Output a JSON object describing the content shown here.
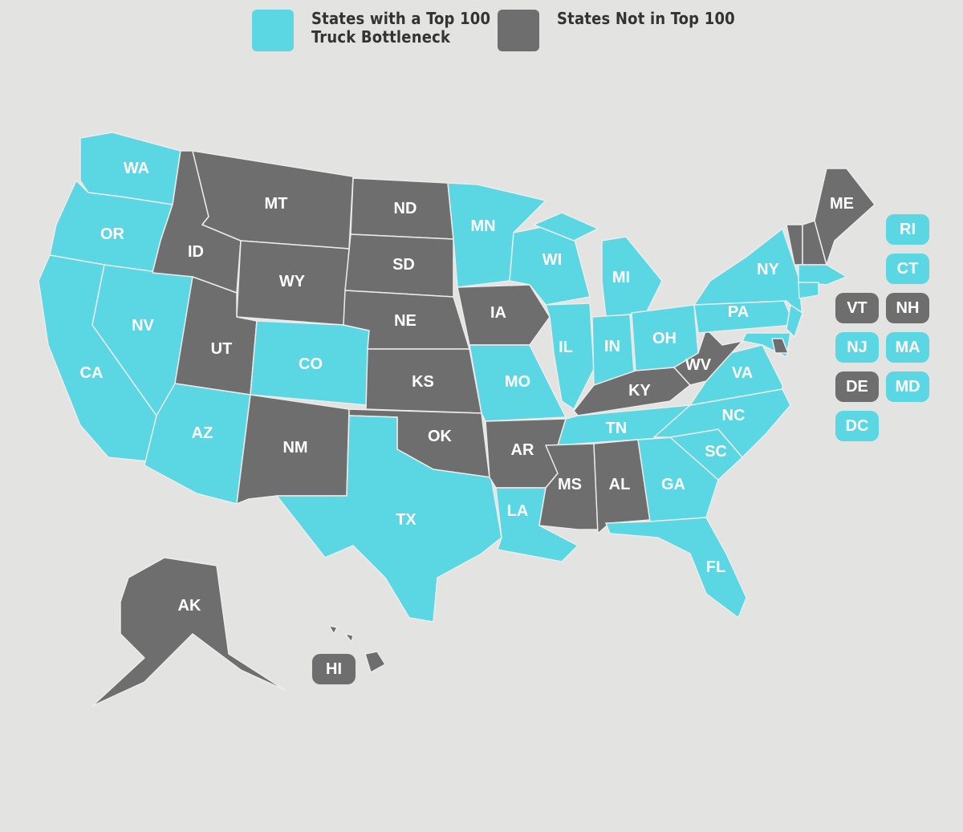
{
  "legend": [
    {
      "label": "States with a Top 100\nTruck Bottleneck",
      "status": "top100"
    },
    {
      "label": "States Not in Top 100",
      "status": "not"
    }
  ],
  "colors": {
    "top100": "#5bd6e3",
    "not": "#6e6e6e",
    "background": "#e3e3e1"
  },
  "states": {
    "WA": "top100",
    "OR": "top100",
    "CA": "top100",
    "NV": "top100",
    "ID": "not",
    "MT": "not",
    "WY": "not",
    "UT": "not",
    "CO": "top100",
    "AZ": "top100",
    "NM": "not",
    "ND": "not",
    "SD": "not",
    "NE": "not",
    "KS": "not",
    "OK": "not",
    "TX": "top100",
    "MN": "top100",
    "IA": "not",
    "MO": "top100",
    "AR": "not",
    "LA": "top100",
    "WI": "top100",
    "IL": "top100",
    "MI": "top100",
    "IN": "top100",
    "OH": "top100",
    "KY": "not",
    "TN": "top100",
    "MS": "not",
    "AL": "not",
    "GA": "top100",
    "FL": "top100",
    "SC": "top100",
    "NC": "top100",
    "VA": "top100",
    "WV": "not",
    "PA": "top100",
    "NY": "top100",
    "NJ": "top100",
    "DE": "not",
    "MD": "top100",
    "VT": "not",
    "NH": "not",
    "ME": "not",
    "MA": "top100",
    "CT": "top100",
    "RI": "top100",
    "DC": "top100",
    "AK": "not",
    "HI": "not"
  }
}
